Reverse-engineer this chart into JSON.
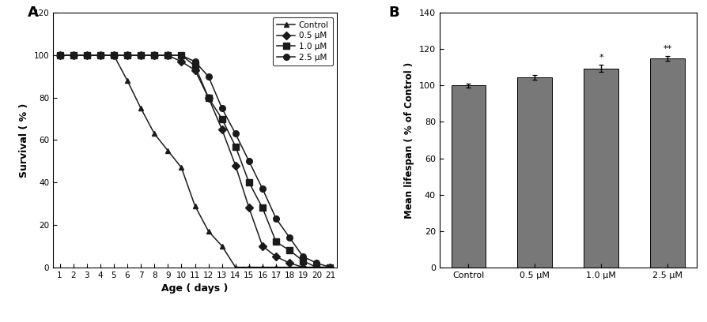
{
  "panel_A": {
    "xlabel": "Age ( days )",
    "ylabel": "Survival ( % )",
    "ylim": [
      0,
      120
    ],
    "yticks": [
      0,
      20,
      40,
      60,
      80,
      100,
      120
    ],
    "xticks": [
      1,
      2,
      3,
      4,
      5,
      6,
      7,
      8,
      9,
      10,
      11,
      12,
      13,
      14,
      15,
      16,
      17,
      18,
      19,
      20,
      21
    ],
    "series": {
      "Control": {
        "x": [
          1,
          2,
          3,
          4,
          5,
          6,
          7,
          8,
          9,
          10,
          11,
          12,
          13,
          14,
          15,
          16,
          17,
          18,
          19,
          20,
          21
        ],
        "y": [
          100,
          100,
          100,
          100,
          100,
          88,
          75,
          63,
          55,
          47,
          29,
          17,
          10,
          0,
          0,
          0,
          0,
          0,
          0,
          0,
          0
        ],
        "marker": "^",
        "color": "#1a1a1a",
        "label": "Control"
      },
      "0.5uM": {
        "x": [
          1,
          2,
          3,
          4,
          5,
          6,
          7,
          8,
          9,
          10,
          11,
          12,
          13,
          14,
          15,
          16,
          17,
          18,
          19,
          20,
          21
        ],
        "y": [
          100,
          100,
          100,
          100,
          100,
          100,
          100,
          100,
          100,
          97,
          93,
          80,
          65,
          48,
          28,
          10,
          5,
          2,
          0,
          0,
          0
        ],
        "marker": "D",
        "color": "#1a1a1a",
        "label": "0.5 μM"
      },
      "1.0uM": {
        "x": [
          1,
          2,
          3,
          4,
          5,
          6,
          7,
          8,
          9,
          10,
          11,
          12,
          13,
          14,
          15,
          16,
          17,
          18,
          19,
          20,
          21
        ],
        "y": [
          100,
          100,
          100,
          100,
          100,
          100,
          100,
          100,
          100,
          100,
          95,
          80,
          70,
          57,
          40,
          28,
          12,
          8,
          3,
          0,
          0
        ],
        "marker": "s",
        "color": "#1a1a1a",
        "label": "1.0 μM"
      },
      "2.5uM": {
        "x": [
          1,
          2,
          3,
          4,
          5,
          6,
          7,
          8,
          9,
          10,
          11,
          12,
          13,
          14,
          15,
          16,
          17,
          18,
          19,
          20,
          21
        ],
        "y": [
          100,
          100,
          100,
          100,
          100,
          100,
          100,
          100,
          100,
          100,
          97,
          90,
          75,
          63,
          50,
          37,
          23,
          14,
          5,
          2,
          0
        ],
        "marker": "o",
        "color": "#1a1a1a",
        "label": "2.5 μM"
      }
    },
    "label_A": "A"
  },
  "panel_B": {
    "ylabel": "Mean lifespan ( % of Control )",
    "categories": [
      "Control",
      "0.5 μM",
      "1.0 μM",
      "2.5 μM"
    ],
    "values": [
      100,
      104.5,
      109.5,
      115.0
    ],
    "errors": [
      1.0,
      1.2,
      2.0,
      1.2
    ],
    "bar_color": "#787878",
    "ylim": [
      0,
      140
    ],
    "yticks": [
      0,
      20,
      40,
      60,
      80,
      100,
      120,
      140
    ],
    "significance": [
      "",
      "",
      "*",
      "**"
    ],
    "label_B": "B"
  }
}
